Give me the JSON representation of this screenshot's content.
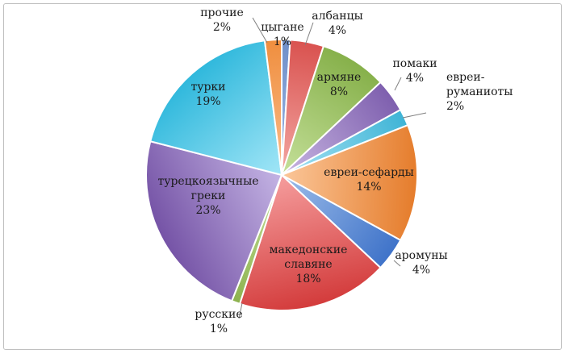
{
  "chart_data": {
    "type": "pie",
    "title": "",
    "legend": "none",
    "slices": [
      {
        "label": "цыгане",
        "value": 1,
        "text": "1%",
        "color": "#9db8e6",
        "dark": "#6f8fc8"
      },
      {
        "label": "албанцы",
        "value": 4,
        "text": "4%",
        "color": "#f3a7a3",
        "dark": "#d9524f"
      },
      {
        "label": "армяне",
        "value": 8,
        "text": "8%",
        "color": "#c5e09a",
        "dark": "#86b04a"
      },
      {
        "label": "помаки",
        "value": 4,
        "text": "4%",
        "color": "#c8b6e2",
        "dark": "#7e5fae"
      },
      {
        "label": "евреи-\nруманиоты",
        "value": 2,
        "text": "2%",
        "color": "#a7e3f3",
        "dark": "#3fb4d6"
      },
      {
        "label": "евреи-сефарды",
        "value": 14,
        "text": "14%",
        "color": "#fbc79a",
        "dark": "#e57c2b"
      },
      {
        "label": "аромуны",
        "value": 4,
        "text": "4%",
        "color": "#9dbde9",
        "dark": "#3f73c9"
      },
      {
        "label": "македонские\nславяне",
        "value": 18,
        "text": "18%",
        "color": "#f59d9d",
        "dark": "#d33b3b"
      },
      {
        "label": "русские",
        "value": 1,
        "text": "1%",
        "color": "#c7e29d",
        "dark": "#8db24f"
      },
      {
        "label": "турецкоязычные\nгреки",
        "value": 23,
        "text": "23%",
        "color": "#c4b4e4",
        "dark": "#7553a6"
      },
      {
        "label": "турки",
        "value": 19,
        "text": "19%",
        "color": "#a2e6f7",
        "dark": "#2fb8dc"
      },
      {
        "label": "прочие",
        "value": 2,
        "text": "2%",
        "color": "#fbbd8c",
        "dark": "#ef8e3e"
      }
    ]
  }
}
